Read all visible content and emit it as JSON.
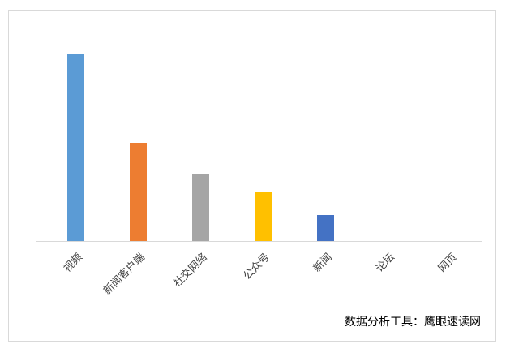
{
  "chart_data": {
    "type": "bar",
    "categories": [
      "视频",
      "新闻客户端",
      "社交网络",
      "公众号",
      "新闻",
      "论坛",
      "网页"
    ],
    "values": [
      231,
      121,
      83,
      60,
      32,
      0,
      0
    ],
    "colors": [
      "#5b9bd5",
      "#ed7d31",
      "#a5a5a5",
      "#ffc000",
      "#4472c4",
      "#70ad47",
      "#255e91"
    ],
    "ylim": [
      0,
      250
    ],
    "annotation": "数据分析工具：鹰眼速读网"
  }
}
